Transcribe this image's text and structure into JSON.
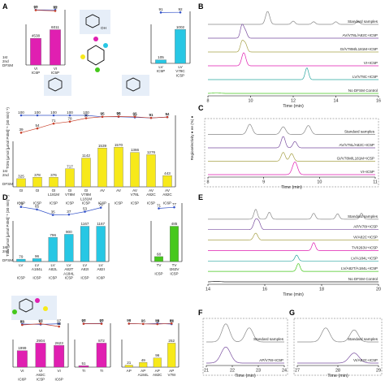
{
  "panels": {
    "A": "A",
    "B": "B",
    "C": "C",
    "D": "D",
    "E": "E",
    "F": "F",
    "G": "G"
  },
  "axis_text": {
    "ton_label": "TON (µmol [µmol P450]⁻¹ (30 min)⁻¹)",
    "regio_label": "Regioselectivity ● ee (%) ●",
    "row1": "1st",
    "row2": "2nd",
    "row3": "DFSM",
    "time_label": "Time (min)"
  },
  "molecule_labels": {
    "oh": "OH",
    "h": "H",
    "r": "R"
  },
  "colors": {
    "magenta": "#e01fb1",
    "yellow": "#f7e91a",
    "cyan": "#27c7e4",
    "green": "#46c81c",
    "blue_line": "#3554c9",
    "red_line": "#c8402a",
    "purple": "#7a4fa0",
    "olive": "#a8a24a",
    "black": "#222222",
    "grey": "#888888",
    "teal": "#2aa6a0"
  },
  "trace_labels": {
    "B": [
      "Standard samples",
      "AV/V78L/A82C+IC5P",
      "GI/V78M/L181M+IC5P",
      "VI+IC5P",
      "LV/V78C+IC5P",
      "No DFSM Control"
    ],
    "C": [
      "Standard samples",
      "AV/V78L/A82C+IC5P",
      "GI/V78M/L181M+IC5P",
      "VI+IC5P"
    ],
    "E": [
      "Standard samples",
      "AP/V78I+IC5P",
      "VI/A82C+IC5P",
      "TV/I263V+IC5P",
      "LV/A184L+IC5P",
      "LV/A82T/A184L+IC5P",
      "No DFSM Control"
    ],
    "F": [
      "Standard samples",
      "AP/V78I+IC5P"
    ],
    "G": [
      "Standard samples",
      "VI/A82C+IC5P"
    ]
  },
  "chart_data": [
    {
      "panel": "A-left",
      "type": "bar",
      "categories": [
        "VI",
        "VI"
      ],
      "rows": {
        "first": [
          "VI",
          "VI"
        ],
        "second": [
          "IC6P",
          "IC5P"
        ]
      },
      "values": [
        4538,
        6011
      ],
      "color": "#e01fb1",
      "regioselectivity": [
        99,
        99
      ],
      "ee": [
        97,
        92
      ]
    },
    {
      "panel": "A-right",
      "type": "bar",
      "categories": [
        "LV",
        "LV"
      ],
      "rows": {
        "first": [
          "LV",
          "LV"
        ],
        "second": [
          "IC5P",
          "V78C"
        ],
        "third": [
          "",
          "IC5P"
        ]
      },
      "values": [
        105,
        1002
      ],
      "color": "#27c7e4",
      "regioselectivity": [
        91,
        92
      ]
    },
    {
      "panel": "A-bottom",
      "type": "bar",
      "categories": [
        "GI",
        "GI",
        "GI",
        "GI",
        "GI",
        "AV",
        "AV",
        "AV",
        "AV",
        "AV"
      ],
      "rows": {
        "first": [
          "GI",
          "GI",
          "GI",
          "GI",
          "GI",
          "AV",
          "AV",
          "AV",
          "AV",
          "AV"
        ],
        "second": [
          "",
          "",
          "L181M",
          "V78M",
          "V78M",
          "",
          "",
          "V78L",
          "A82C",
          "A82C"
        ],
        "third": [
          "",
          "",
          "",
          "",
          "L181M",
          "",
          "",
          "",
          "",
          ""
        ],
        "dfsm": [
          "IC6P",
          "IC5P",
          "IC5P",
          "IC5P",
          "IC5P",
          "IC6P",
          "IC5P",
          "IC5P",
          "IC5P",
          "IC6P"
        ]
      },
      "values": [
        325,
        378,
        376,
        717,
        1142,
        1539,
        1570,
        1366,
        1276,
        443
      ],
      "color": "#f7e91a",
      "regioselectivity": [
        100,
        100,
        100,
        100,
        100,
        95,
        95,
        93,
        91,
        94
      ],
      "ee": [
        39,
        54,
        71,
        78,
        90,
        95,
        96,
        95,
        91,
        94
      ]
    },
    {
      "panel": "D-top-left",
      "type": "bar",
      "categories": [
        "LV",
        "LV",
        "LV",
        "LV",
        "LV",
        "LV"
      ],
      "rows": {
        "first": [
          "LV",
          "LV",
          "LV",
          "LV",
          "LV",
          "LV"
        ],
        "second": [
          "",
          "A184L",
          "A82L",
          "A82T",
          "A82I",
          "A82I"
        ],
        "third": [
          "",
          "",
          "",
          "A184L",
          "",
          ""
        ],
        "dfsm": [
          "IC5P",
          "IC5P",
          "IC5P",
          "IC5P",
          "IC5P",
          "IC6P"
        ]
      },
      "values": [
        79,
        96,
        796,
        900,
        1167,
        1167
      ],
      "color": "#27c7e4",
      "regioselectivity": [
        79,
        65,
        35,
        37,
        53,
        75
      ]
    },
    {
      "panel": "D-top-right",
      "type": "bar",
      "categories": [
        "TV",
        "TV"
      ],
      "rows": {
        "first": [
          "TV",
          "TV"
        ],
        "second": [
          "",
          "I263V"
        ],
        "dfsm": [
          "IC5P",
          "IC5P"
        ]
      },
      "values": [
        68,
        485
      ],
      "color": "#46c81c",
      "regioselectivity": [
        71,
        77
      ]
    },
    {
      "panel": "D-bottom-left",
      "type": "bar",
      "categories": [
        "VI",
        "VI",
        "VI"
      ],
      "rows": {
        "first": [
          "VI",
          "VI",
          "VI"
        ],
        "second": [
          "",
          "A82C",
          ""
        ],
        "dfsm": [
          "IC6P",
          "IC5P",
          "IC6P"
        ]
      },
      "values": [
        1999,
        2904,
        2623
      ],
      "color": "#e01fb1",
      "regioselectivity": [
        95,
        93,
        97
      ],
      "ee": [
        90,
        97,
        80
      ]
    },
    {
      "panel": "D-bottom-mid",
      "type": "bar",
      "categories": [
        "TI",
        "TI"
      ],
      "values": [
        51,
        872
      ],
      "color": "#e01fb1",
      "regioselectivity": [
        98,
        99
      ],
      "ee": [
        97,
        97
      ]
    },
    {
      "panel": "D-bottom-right",
      "type": "bar",
      "categories": [
        "AP",
        "AP",
        "AP",
        "AP"
      ],
      "rows": {
        "first": [
          "AP",
          "AP",
          "AP",
          "AP"
        ],
        "second": [
          "",
          "A184L",
          "A82C",
          "V78I"
        ]
      },
      "values": [
        21,
        49,
        96,
        252
      ],
      "color": "#f7e91a",
      "regioselectivity": [
        98,
        96,
        99,
        95
      ],
      "ee": [
        98,
        96,
        95,
        99
      ]
    }
  ],
  "chromatograms": {
    "B": {
      "ticks": [
        "8",
        "10",
        "12",
        "14",
        "16"
      ]
    },
    "C": {
      "ticks": [
        "8",
        "9",
        "10",
        "11"
      ]
    },
    "E": {
      "ticks": [
        "14",
        "16",
        "18",
        "20"
      ]
    },
    "F": {
      "ticks": [
        "21",
        "22",
        "23",
        "24"
      ]
    },
    "G": {
      "ticks": [
        "27",
        "28",
        "29"
      ]
    }
  }
}
